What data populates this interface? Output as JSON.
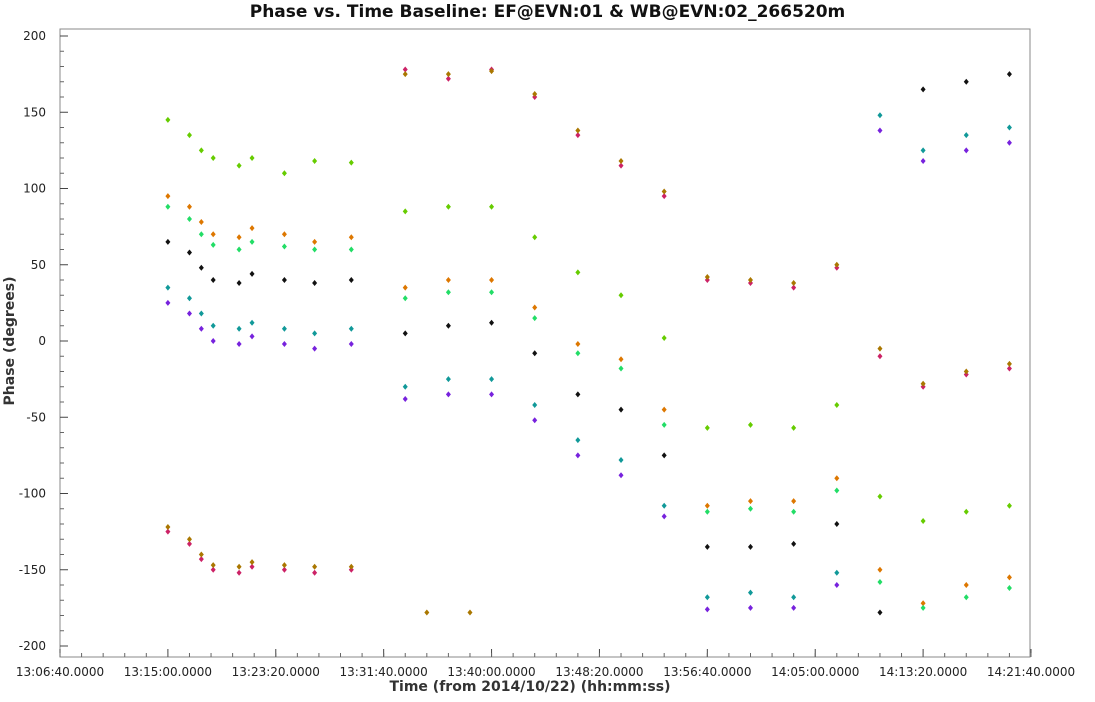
{
  "chart_data": {
    "type": "scatter",
    "title": "Phase vs. Time Baseline: EF@EVN:01 & WB@EVN:02_266520m",
    "xlabel": "Time (from 2014/10/22) (hh:mm:ss)",
    "ylabel": "Phase (degrees)",
    "x_ticks": [
      "13:06:40.0000",
      "13:15:00.0000",
      "13:23:20.0000",
      "13:31:40.0000",
      "13:40:00.0000",
      "13:48:20.0000",
      "13:56:40.0000",
      "14:05:00.0000",
      "14:13:20.0000",
      "14:21:40.0000"
    ],
    "xlim": [
      "13:06:40",
      "14:21:40"
    ],
    "ylim": [
      -200,
      200
    ],
    "y_ticks": [
      200,
      150,
      100,
      50,
      0,
      -50,
      -100,
      -150,
      -200
    ],
    "grid": false,
    "legend": "none",
    "colors": {
      "lime": "#66cc00",
      "orange": "#dd7700",
      "green": "#22dd66",
      "black": "#111111",
      "teal": "#119999",
      "purple": "#7722dd",
      "magenta": "#cc2266",
      "olive": "#aa7700"
    },
    "series": [
      {
        "color": "lime",
        "points": [
          [
            "13:15:00",
            145
          ],
          [
            "13:16:40",
            135
          ],
          [
            "13:17:35",
            125
          ],
          [
            "13:18:30",
            120
          ],
          [
            "13:20:30",
            115
          ],
          [
            "13:21:30",
            120
          ],
          [
            "13:24:00",
            110
          ],
          [
            "13:26:20",
            118
          ],
          [
            "13:29:10",
            117
          ],
          [
            "13:33:20",
            85
          ],
          [
            "13:36:40",
            88
          ],
          [
            "13:40:00",
            88
          ],
          [
            "13:43:20",
            68
          ],
          [
            "13:46:40",
            45
          ],
          [
            "13:50:00",
            30
          ],
          [
            "13:53:20",
            2
          ],
          [
            "13:56:40",
            -57
          ],
          [
            "14:00:00",
            -55
          ],
          [
            "14:03:20",
            -57
          ],
          [
            "14:06:40",
            -42
          ],
          [
            "14:10:00",
            -102
          ],
          [
            "14:13:20",
            -118
          ],
          [
            "14:16:40",
            -112
          ],
          [
            "14:20:00",
            -108
          ]
        ]
      },
      {
        "color": "orange",
        "points": [
          [
            "13:15:00",
            95
          ],
          [
            "13:16:40",
            88
          ],
          [
            "13:17:35",
            78
          ],
          [
            "13:18:30",
            70
          ],
          [
            "13:20:30",
            68
          ],
          [
            "13:21:30",
            74
          ],
          [
            "13:24:00",
            70
          ],
          [
            "13:26:20",
            65
          ],
          [
            "13:29:10",
            68
          ],
          [
            "13:33:20",
            35
          ],
          [
            "13:36:40",
            40
          ],
          [
            "13:40:00",
            40
          ],
          [
            "13:43:20",
            22
          ],
          [
            "13:46:40",
            -2
          ],
          [
            "13:50:00",
            -12
          ],
          [
            "13:53:20",
            -45
          ],
          [
            "13:56:40",
            -108
          ],
          [
            "14:00:00",
            -105
          ],
          [
            "14:03:20",
            -105
          ],
          [
            "14:06:40",
            -90
          ],
          [
            "14:10:00",
            -150
          ],
          [
            "14:13:20",
            -172
          ],
          [
            "14:16:40",
            -160
          ],
          [
            "14:20:00",
            -155
          ]
        ]
      },
      {
        "color": "green",
        "points": [
          [
            "13:15:00",
            88
          ],
          [
            "13:16:40",
            80
          ],
          [
            "13:17:35",
            70
          ],
          [
            "13:18:30",
            63
          ],
          [
            "13:20:30",
            60
          ],
          [
            "13:21:30",
            65
          ],
          [
            "13:24:00",
            62
          ],
          [
            "13:26:20",
            60
          ],
          [
            "13:29:10",
            60
          ],
          [
            "13:33:20",
            28
          ],
          [
            "13:36:40",
            32
          ],
          [
            "13:40:00",
            32
          ],
          [
            "13:43:20",
            15
          ],
          [
            "13:46:40",
            -8
          ],
          [
            "13:50:00",
            -18
          ],
          [
            "13:53:20",
            -55
          ],
          [
            "13:56:40",
            -112
          ],
          [
            "14:00:00",
            -110
          ],
          [
            "14:03:20",
            -112
          ],
          [
            "14:06:40",
            -98
          ],
          [
            "14:10:00",
            -158
          ],
          [
            "14:13:20",
            -175
          ],
          [
            "14:16:40",
            -168
          ],
          [
            "14:20:00",
            -162
          ]
        ]
      },
      {
        "color": "black",
        "points": [
          [
            "13:15:00",
            65
          ],
          [
            "13:16:40",
            58
          ],
          [
            "13:17:35",
            48
          ],
          [
            "13:18:30",
            40
          ],
          [
            "13:20:30",
            38
          ],
          [
            "13:21:30",
            44
          ],
          [
            "13:24:00",
            40
          ],
          [
            "13:26:20",
            38
          ],
          [
            "13:29:10",
            40
          ],
          [
            "13:33:20",
            5
          ],
          [
            "13:36:40",
            10
          ],
          [
            "13:40:00",
            12
          ],
          [
            "13:43:20",
            -8
          ],
          [
            "13:46:40",
            -35
          ],
          [
            "13:50:00",
            -45
          ],
          [
            "13:53:20",
            -75
          ],
          [
            "13:56:40",
            -135
          ],
          [
            "14:00:00",
            -135
          ],
          [
            "14:03:20",
            -133
          ],
          [
            "14:06:40",
            -120
          ],
          [
            "14:10:00",
            -178
          ],
          [
            "14:13:20",
            165
          ],
          [
            "14:16:40",
            170
          ],
          [
            "14:20:00",
            175
          ]
        ]
      },
      {
        "color": "teal",
        "points": [
          [
            "13:15:00",
            35
          ],
          [
            "13:16:40",
            28
          ],
          [
            "13:17:35",
            18
          ],
          [
            "13:18:30",
            10
          ],
          [
            "13:20:30",
            8
          ],
          [
            "13:21:30",
            12
          ],
          [
            "13:24:00",
            8
          ],
          [
            "13:26:20",
            5
          ],
          [
            "13:29:10",
            8
          ],
          [
            "13:33:20",
            -30
          ],
          [
            "13:36:40",
            -25
          ],
          [
            "13:40:00",
            -25
          ],
          [
            "13:43:20",
            -42
          ],
          [
            "13:46:40",
            -65
          ],
          [
            "13:50:00",
            -78
          ],
          [
            "13:53:20",
            -108
          ],
          [
            "13:56:40",
            -168
          ],
          [
            "14:00:00",
            -165
          ],
          [
            "14:03:20",
            -168
          ],
          [
            "14:06:40",
            -152
          ],
          [
            "14:10:00",
            148
          ],
          [
            "14:13:20",
            125
          ],
          [
            "14:16:40",
            135
          ],
          [
            "14:20:00",
            140
          ]
        ]
      },
      {
        "color": "purple",
        "points": [
          [
            "13:15:00",
            25
          ],
          [
            "13:16:40",
            18
          ],
          [
            "13:17:35",
            8
          ],
          [
            "13:18:30",
            0
          ],
          [
            "13:20:30",
            -2
          ],
          [
            "13:21:30",
            3
          ],
          [
            "13:24:00",
            -2
          ],
          [
            "13:26:20",
            -5
          ],
          [
            "13:29:10",
            -2
          ],
          [
            "13:33:20",
            -38
          ],
          [
            "13:36:40",
            -35
          ],
          [
            "13:40:00",
            -35
          ],
          [
            "13:43:20",
            -52
          ],
          [
            "13:46:40",
            -75
          ],
          [
            "13:50:00",
            -88
          ],
          [
            "13:53:20",
            -115
          ],
          [
            "13:56:40",
            -176
          ],
          [
            "14:00:00",
            -175
          ],
          [
            "14:03:20",
            -175
          ],
          [
            "14:06:40",
            -160
          ],
          [
            "14:10:00",
            138
          ],
          [
            "14:13:20",
            118
          ],
          [
            "14:16:40",
            125
          ],
          [
            "14:20:00",
            130
          ]
        ]
      },
      {
        "color": "magenta",
        "points": [
          [
            "13:15:00",
            -125
          ],
          [
            "13:16:40",
            -133
          ],
          [
            "13:17:35",
            -143
          ],
          [
            "13:18:30",
            -150
          ],
          [
            "13:20:30",
            -152
          ],
          [
            "13:21:30",
            -148
          ],
          [
            "13:24:00",
            -150
          ],
          [
            "13:26:20",
            -152
          ],
          [
            "13:29:10",
            -150
          ],
          [
            "13:33:20",
            178
          ],
          [
            "13:36:40",
            172
          ],
          [
            "13:40:00",
            178
          ],
          [
            "13:43:20",
            160
          ],
          [
            "13:46:40",
            135
          ],
          [
            "13:50:00",
            115
          ],
          [
            "13:53:20",
            95
          ],
          [
            "13:56:40",
            40
          ],
          [
            "14:00:00",
            38
          ],
          [
            "14:03:20",
            35
          ],
          [
            "14:06:40",
            48
          ],
          [
            "14:10:00",
            -10
          ],
          [
            "14:13:20",
            -30
          ],
          [
            "14:16:40",
            -22
          ],
          [
            "14:20:00",
            -18
          ]
        ]
      },
      {
        "color": "olive",
        "points": [
          [
            "13:15:00",
            -122
          ],
          [
            "13:16:40",
            -130
          ],
          [
            "13:17:35",
            -140
          ],
          [
            "13:18:30",
            -147
          ],
          [
            "13:20:30",
            -148
          ],
          [
            "13:21:30",
            -145
          ],
          [
            "13:24:00",
            -147
          ],
          [
            "13:26:20",
            -148
          ],
          [
            "13:29:10",
            -148
          ],
          [
            "13:33:20",
            175
          ],
          [
            "13:35:00",
            -178
          ],
          [
            "13:36:40",
            175
          ],
          [
            "13:38:20",
            -178
          ],
          [
            "13:40:00",
            177
          ],
          [
            "13:43:20",
            162
          ],
          [
            "13:46:40",
            138
          ],
          [
            "13:50:00",
            118
          ],
          [
            "13:53:20",
            98
          ],
          [
            "13:56:40",
            42
          ],
          [
            "14:00:00",
            40
          ],
          [
            "14:03:20",
            38
          ],
          [
            "14:06:40",
            50
          ],
          [
            "14:10:00",
            -5
          ],
          [
            "14:13:20",
            -28
          ],
          [
            "14:16:40",
            -20
          ],
          [
            "14:20:00",
            -15
          ]
        ]
      }
    ]
  }
}
